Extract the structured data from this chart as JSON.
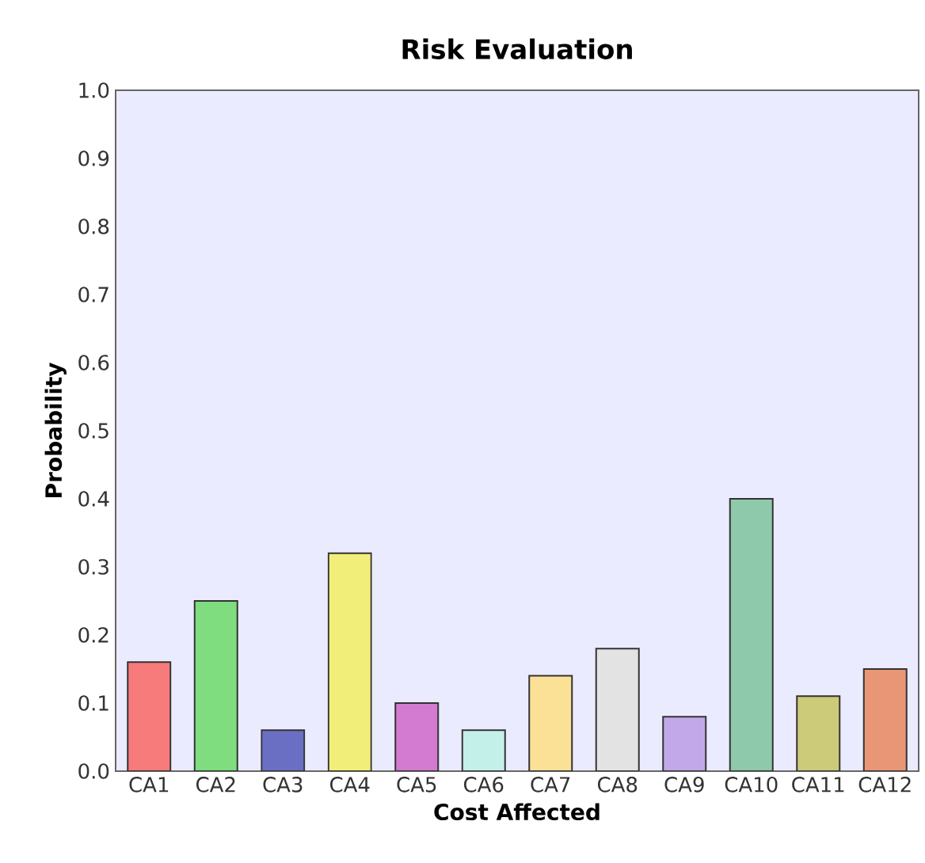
{
  "chart_data": {
    "type": "bar",
    "title": "Risk Evaluation",
    "xlabel": "Cost Affected",
    "ylabel": "Probability",
    "categories": [
      "CA1",
      "CA2",
      "CA3",
      "CA4",
      "CA5",
      "CA6",
      "CA7",
      "CA8",
      "CA9",
      "CA10",
      "CA11",
      "CA12"
    ],
    "values": [
      0.16,
      0.25,
      0.06,
      0.32,
      0.1,
      0.06,
      0.14,
      0.18,
      0.08,
      0.4,
      0.11,
      0.15
    ],
    "colors": [
      "#f77b7b",
      "#7fdc7f",
      "#6b6fc4",
      "#f2ee7a",
      "#d27bd0",
      "#c4f0ea",
      "#fbe196",
      "#e3e3e3",
      "#c2a8e8",
      "#8fc9ac",
      "#cccb7a",
      "#e99677"
    ],
    "ylim": [
      0,
      1
    ],
    "yticks": [
      {
        "value": 0,
        "label": "0.0"
      },
      0.1,
      0.2,
      0.3,
      0.4,
      0.5,
      0.6,
      0.7,
      0.8,
      0.9,
      {
        "value": 1,
        "label": "1.0"
      }
    ],
    "grid": false
  }
}
